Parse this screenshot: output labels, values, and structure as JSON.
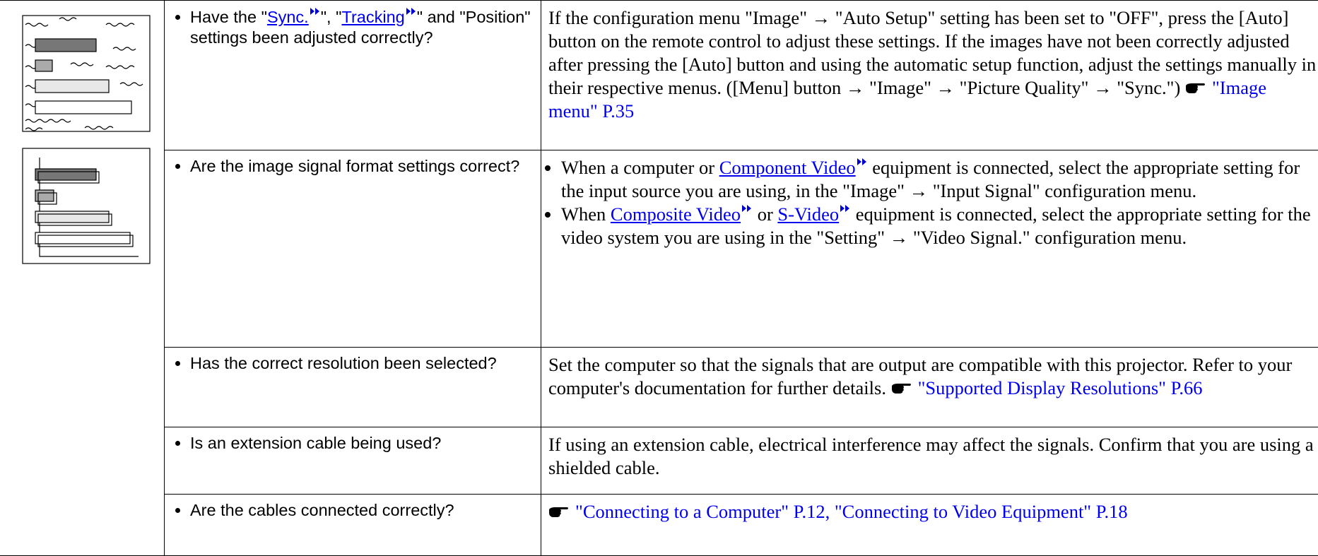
{
  "rows": [
    {
      "question": [
        {
          "text": "Have the \""
        },
        {
          "term": "Sync."
        },
        {
          "text": "\", \""
        },
        {
          "term": "Tracking"
        },
        {
          "text": "\" and \"Position\" settings been adjusted correctly?"
        }
      ],
      "answer": [
        [
          {
            "text": "If the configuration menu \"Image\" → \"Auto Setup\" setting has been set to \"OFF\", press the [Auto] button on the remote control to adjust these settings. If the images have not been correctly adjusted after pressing the [Auto] button and using the automatic setup function, adjust the settings manually in their respective menus. ([Menu] button → \"Image\" → \"Picture Quality\" → \"Sync.\") "
          },
          {
            "ref": "\"Image menu\" P.35"
          }
        ]
      ]
    },
    {
      "question": [
        {
          "text": "Are the image signal format settings correct?"
        }
      ],
      "answer_list": [
        [
          {
            "text": "When a computer or "
          },
          {
            "term": "Component Video"
          },
          {
            "text": " equipment is connected, select the appropriate setting for the input source you are using, in the \"Image\" → \"Input Signal\" configuration menu."
          }
        ],
        [
          {
            "text": "When "
          },
          {
            "term": "Composite Video"
          },
          {
            "text": " or "
          },
          {
            "term": "S-Video"
          },
          {
            "text": " equipment is connected, select the appropriate setting for the video system you are using in the \"Setting\" → \"Video Signal.\" configuration menu."
          }
        ]
      ]
    },
    {
      "question": [
        {
          "text": "Has the correct resolution been selected?"
        }
      ],
      "answer": [
        [
          {
            "text": "Set the computer so that the signals that are output are compatible with this projector. Refer to your computer's documentation for further details. "
          },
          {
            "ref": "\"Supported Display Resolutions\" P.66"
          }
        ]
      ]
    },
    {
      "question": [
        {
          "text": "Is an extension cable being used?"
        }
      ],
      "answer": [
        [
          {
            "text": "If using an extension cable, electrical interference may affect the signals. Confirm that you are using a shielded cable."
          }
        ]
      ]
    },
    {
      "question": [
        {
          "text": "Are the cables connected correctly?"
        }
      ],
      "answer": [
        [
          {
            "ref": "\"Connecting to a Computer\" P.12, \"Connecting to Video Equipment\" P.18"
          }
        ]
      ]
    }
  ]
}
